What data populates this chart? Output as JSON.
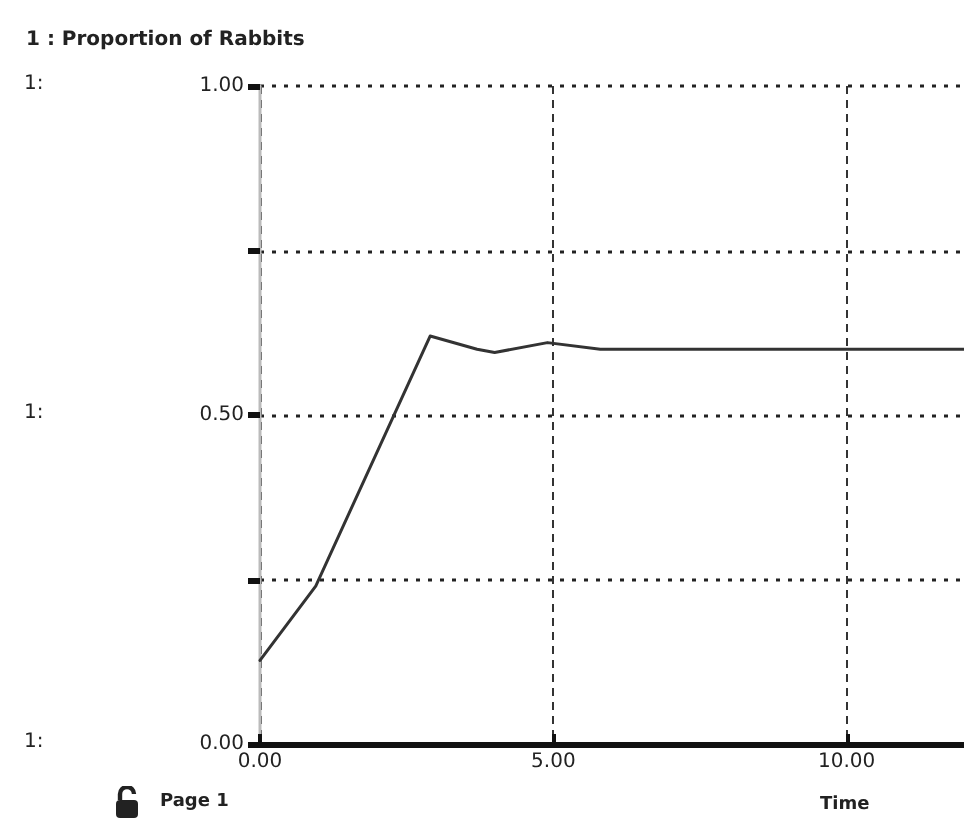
{
  "chart_data": {
    "type": "line",
    "title": "1 : Proportion of Rabbits",
    "xlabel": "Time",
    "annotations": [
      "Page 1",
      "1:",
      "1:",
      "1:"
    ],
    "x": [
      0,
      0.95,
      2.9,
      3.7,
      4.0,
      4.9,
      5.8,
      7,
      8,
      9,
      10,
      11,
      12
    ],
    "series": [
      {
        "color": "#333333",
        "values": [
          0.127,
          0.24,
          0.62,
          0.6,
          0.595,
          0.61,
          0.6,
          0.6,
          0.6,
          0.6,
          0.6,
          0.6,
          0.6
        ]
      }
    ],
    "xlim": [
      0,
      12
    ],
    "xticks": [
      {
        "value": 0,
        "label": "0.00"
      },
      {
        "value": 5,
        "label": "5.00"
      },
      {
        "value": 10,
        "label": "10.00"
      }
    ],
    "ylim": [
      0,
      1
    ],
    "yticks": [
      {
        "value": 0,
        "label": "0.00"
      },
      {
        "value": 0.25,
        "label": null
      },
      {
        "value": 0.5,
        "label": "0.50"
      },
      {
        "value": 0.75,
        "label": null
      },
      {
        "value": 1,
        "label": "1.00"
      }
    ],
    "grid": true,
    "marker": "none",
    "line_style": "solid"
  }
}
